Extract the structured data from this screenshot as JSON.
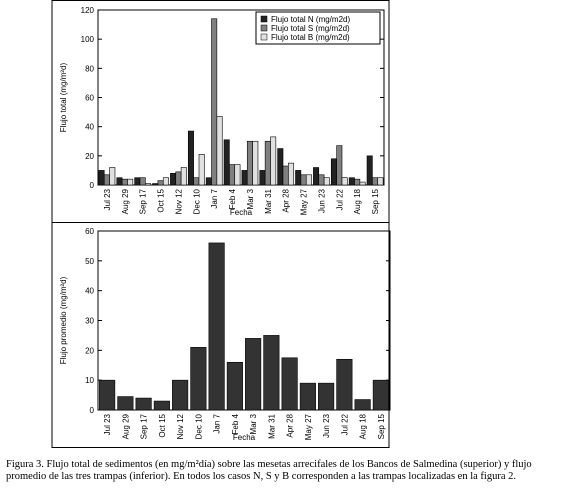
{
  "chart_data": [
    {
      "type": "bar",
      "xlabel": "Fecha",
      "ylabel": "Flujo total  (mg/m²d)",
      "categories": [
        "Jul 23",
        "Aug 29",
        "Sep 17",
        "Oct 15",
        "Nov 12",
        "Dec 10",
        "Jan 7",
        "Feb 4",
        "Mar 3",
        "Mar 31",
        "Apr 28",
        "May 27",
        "Jun 23",
        "Jul 22",
        "Aug 18",
        "Sep 15"
      ],
      "series": [
        {
          "name": "Flujo total N (mg/m2d)",
          "color": "#222222",
          "values": [
            10,
            5,
            5,
            1,
            8,
            37,
            5,
            31,
            10,
            10,
            25,
            10,
            12,
            18,
            5,
            20
          ]
        },
        {
          "name": "Flujo total S (mg/m2d)",
          "color": "#808080",
          "values": [
            7,
            4,
            5,
            3,
            9,
            5,
            114,
            14,
            30,
            30,
            13,
            7,
            7,
            27,
            4,
            5
          ]
        },
        {
          "name": "Flujo total B (mg/m2d)",
          "color": "#e0e0e0",
          "values": [
            12,
            4,
            1,
            5,
            12,
            21,
            47,
            14,
            30,
            33,
            15,
            7,
            5,
            5,
            2,
            5
          ]
        }
      ],
      "ylim": [
        0,
        120
      ],
      "yticks": [
        0,
        20,
        40,
        60,
        80,
        100,
        120
      ],
      "legend": "upper right"
    },
    {
      "type": "bar",
      "xlabel": "Fecha",
      "ylabel": "Flujo promedio (mg/m²d)",
      "categories": [
        "Jul 23",
        "Aug 29",
        "Sep 17",
        "Oct 15",
        "Nov 12",
        "Dec 10",
        "Jan 7",
        "Feb 4",
        "Mar 3",
        "Mar 31",
        "Apr 28",
        "May 27",
        "Jun 23",
        "Jul 22",
        "Aug 18",
        "Sep 15"
      ],
      "series": [
        {
          "name": null,
          "color": "#333333",
          "values": [
            10,
            4.5,
            4,
            3,
            10,
            21,
            56,
            16,
            24,
            25,
            17.5,
            9,
            9,
            17,
            3.5,
            10
          ]
        }
      ],
      "ylim": [
        0,
        60
      ],
      "yticks": [
        0,
        10,
        20,
        30,
        40,
        50,
        60
      ]
    }
  ],
  "caption": "Figura 3. Flujo total de sedimentos (en mg/m²día) sobre las mesetas arrecifales de los Bancos de Salmedina (superior) y flujo promedio de las tres trampas (inferior). En todos los casos N, S y B corresponden a las trampas localizadas en la figura 2."
}
